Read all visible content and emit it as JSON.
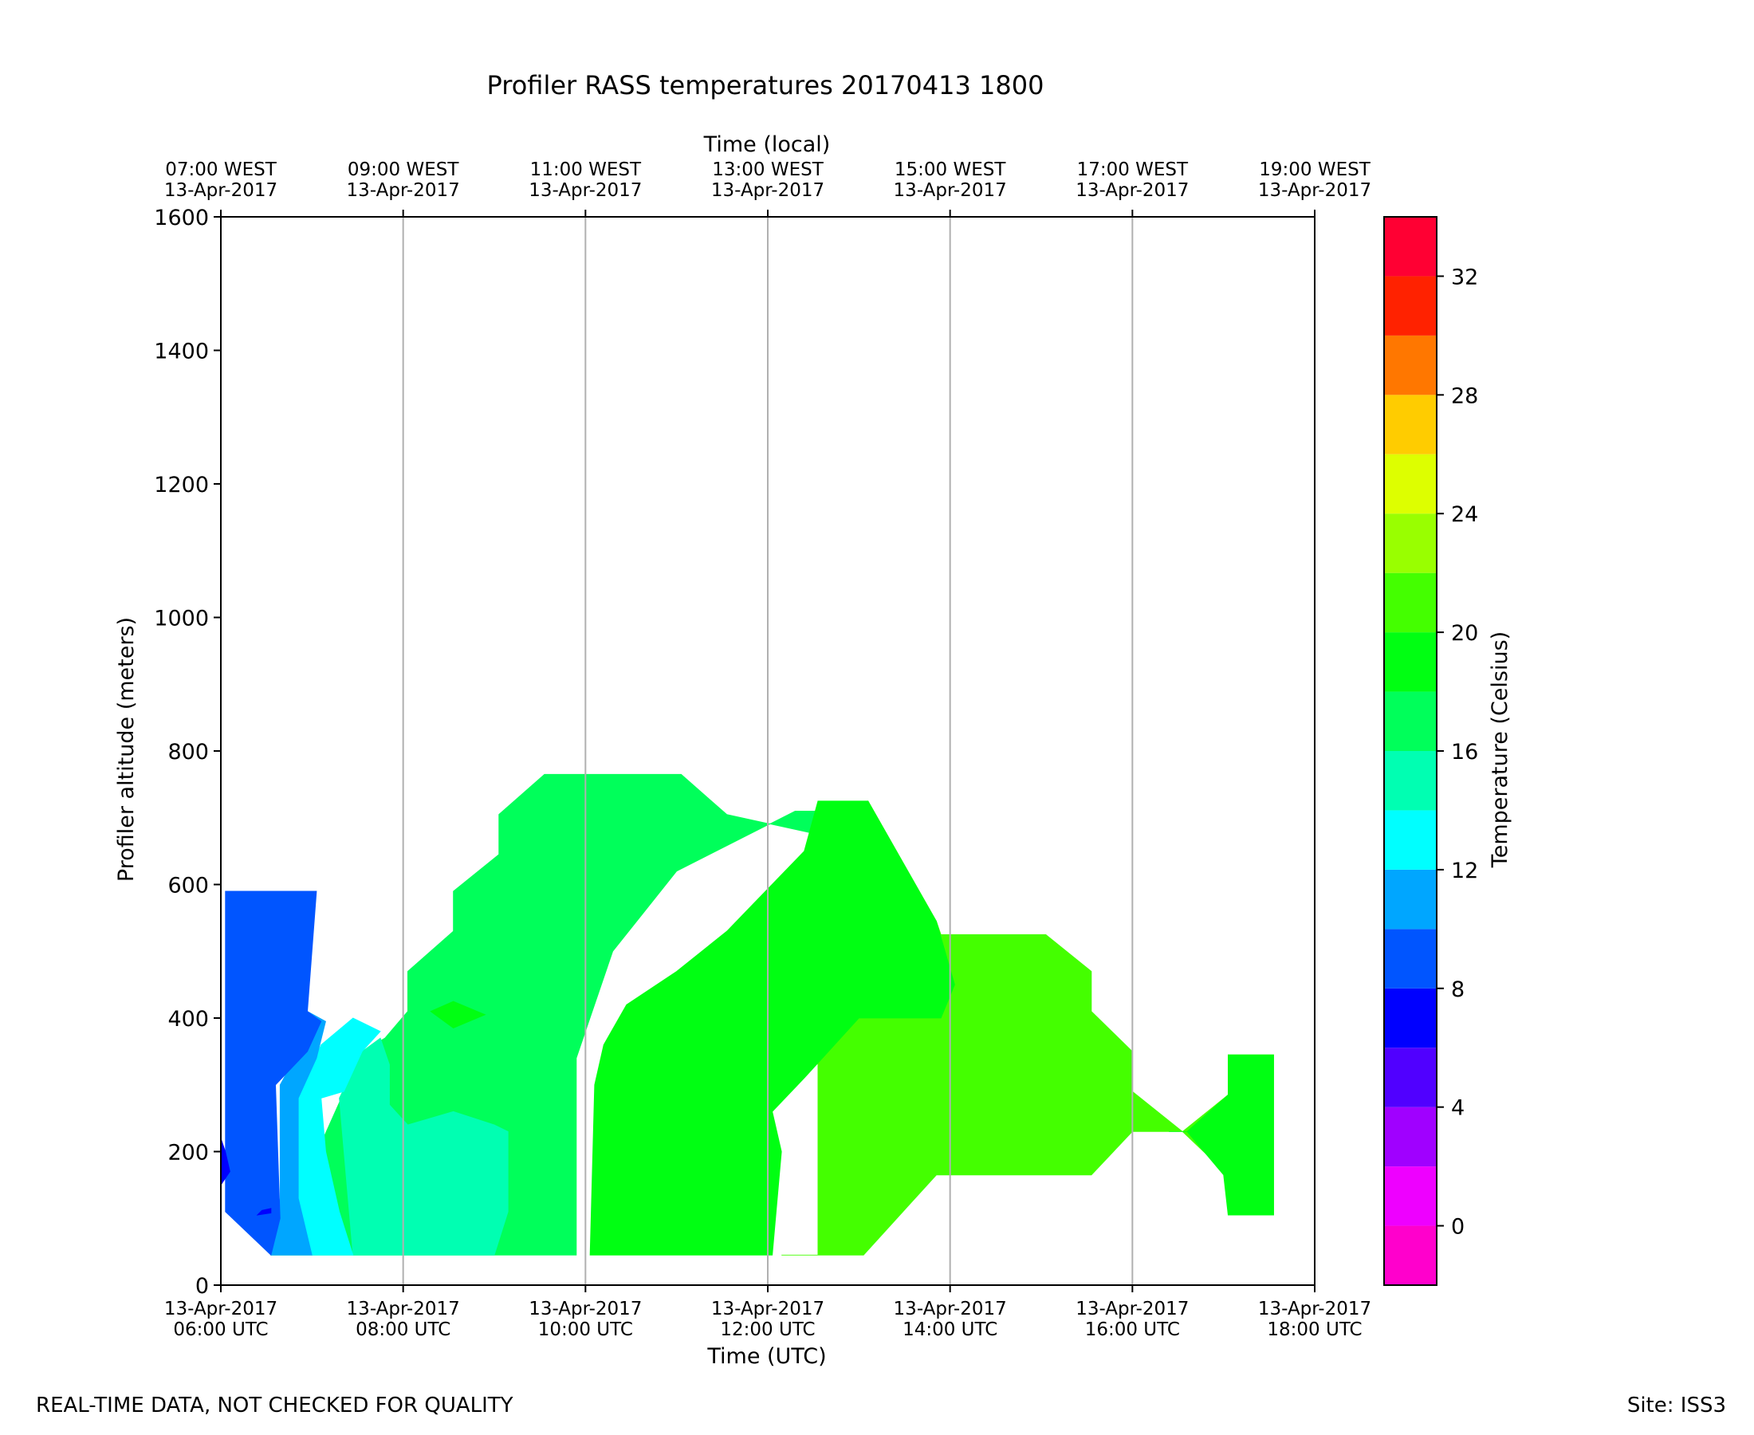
{
  "chart_data": {
    "type": "heatmap",
    "subtype": "filled-contour",
    "title": "Profiler RASS temperatures 20170413 1800",
    "xlabel": "Time (UTC)",
    "xlabel_top": "Time (local)",
    "ylabel": "Profiler altitude (meters)",
    "colorbar_label": "Temperature (Celsius)",
    "x_ticks": [
      {
        "hour": 6,
        "date": "13-Apr-2017",
        "utc": "06:00 UTC",
        "local": "07:00 WEST"
      },
      {
        "hour": 8,
        "date": "13-Apr-2017",
        "utc": "08:00 UTC",
        "local": "09:00 WEST"
      },
      {
        "hour": 10,
        "date": "13-Apr-2017",
        "utc": "10:00 UTC",
        "local": "11:00 WEST"
      },
      {
        "hour": 12,
        "date": "13-Apr-2017",
        "utc": "12:00 UTC",
        "local": "13:00 WEST"
      },
      {
        "hour": 14,
        "date": "13-Apr-2017",
        "utc": "14:00 UTC",
        "local": "15:00 WEST"
      },
      {
        "hour": 16,
        "date": "13-Apr-2017",
        "utc": "16:00 UTC",
        "local": "17:00 WEST"
      },
      {
        "hour": 18,
        "date": "13-Apr-2017",
        "utc": "18:00 UTC",
        "local": "19:00 WEST"
      }
    ],
    "xlim": [
      6,
      18
    ],
    "ylim": [
      0,
      1600
    ],
    "y_ticks": [
      0,
      200,
      400,
      600,
      800,
      1000,
      1200,
      1400,
      1600
    ],
    "colorbar": {
      "range": [
        -2,
        34
      ],
      "ticks": [
        0,
        4,
        8,
        12,
        16,
        20,
        24,
        28,
        32
      ],
      "levels": [
        {
          "from": -2,
          "to": 0,
          "color": "#ff00cc"
        },
        {
          "from": 0,
          "to": 2,
          "color": "#ee00ff"
        },
        {
          "from": 2,
          "to": 4,
          "color": "#a000ff"
        },
        {
          "from": 4,
          "to": 6,
          "color": "#5000ff"
        },
        {
          "from": 6,
          "to": 8,
          "color": "#0000ff"
        },
        {
          "from": 8,
          "to": 10,
          "color": "#0055ff"
        },
        {
          "from": 10,
          "to": 12,
          "color": "#00a6ff"
        },
        {
          "from": 12,
          "to": 14,
          "color": "#00ffff"
        },
        {
          "from": 14,
          "to": 16,
          "color": "#00ffb2"
        },
        {
          "from": 16,
          "to": 18,
          "color": "#00ff5a"
        },
        {
          "from": 18,
          "to": 20,
          "color": "#00ff12"
        },
        {
          "from": 20,
          "to": 22,
          "color": "#44ff00"
        },
        {
          "from": 22,
          "to": 24,
          "color": "#99ff00"
        },
        {
          "from": 24,
          "to": 26,
          "color": "#ddff00"
        },
        {
          "from": 26,
          "to": 28,
          "color": "#ffcc00"
        },
        {
          "from": 28,
          "to": 30,
          "color": "#ff7700"
        },
        {
          "from": 30,
          "to": 32,
          "color": "#ff2200"
        },
        {
          "from": 32,
          "to": 34,
          "color": "#ff0033"
        }
      ]
    },
    "regions": [
      {
        "level": "16-18",
        "color": "#00ff5a",
        "points": [
          [
            6.55,
            45
          ],
          [
            9.9,
            45
          ],
          [
            9.9,
            340
          ],
          [
            10.3,
            500
          ],
          [
            11,
            620
          ],
          [
            12.3,
            710
          ],
          [
            12.55,
            710
          ],
          [
            12.55,
            675
          ],
          [
            11.55,
            705
          ],
          [
            11.05,
            765
          ],
          [
            9.55,
            765
          ],
          [
            9.05,
            705
          ],
          [
            9.05,
            645
          ],
          [
            8.55,
            590
          ],
          [
            8.55,
            530
          ],
          [
            8.05,
            470
          ],
          [
            8.05,
            410
          ],
          [
            7.8,
            370
          ],
          [
            7.55,
            350
          ]
        ]
      },
      {
        "level": "20-22",
        "color": "#44ff00",
        "points": [
          [
            12.15,
            45
          ],
          [
            13.05,
            45
          ],
          [
            13.85,
            165
          ],
          [
            15.55,
            165
          ],
          [
            16.0,
            230
          ],
          [
            16.55,
            230
          ],
          [
            17.05,
            165
          ],
          [
            17.05,
            105
          ],
          [
            17.55,
            105
          ],
          [
            17.55,
            345
          ],
          [
            17.05,
            345
          ],
          [
            17.05,
            285
          ],
          [
            16.55,
            230
          ],
          [
            16.0,
            290
          ],
          [
            16.0,
            350
          ],
          [
            15.55,
            410
          ],
          [
            15.55,
            470
          ],
          [
            15.05,
            525
          ],
          [
            13.9,
            525
          ],
          [
            13.85,
            545
          ],
          [
            13.1,
            725
          ],
          [
            12.55,
            715
          ],
          [
            12.55,
            45
          ]
        ]
      },
      {
        "level": "18-20",
        "color": "#00ff12",
        "points": [
          [
            10.05,
            45
          ],
          [
            12.05,
            45
          ],
          [
            12.15,
            200
          ],
          [
            12.05,
            260
          ],
          [
            12.4,
            310
          ],
          [
            13.0,
            400
          ],
          [
            13.9,
            400
          ],
          [
            14.05,
            450
          ],
          [
            13.85,
            545
          ],
          [
            13.1,
            725
          ],
          [
            12.55,
            725
          ],
          [
            12.4,
            650
          ],
          [
            11.55,
            530
          ],
          [
            11.0,
            470
          ],
          [
            10.45,
            420
          ],
          [
            10.2,
            360
          ],
          [
            10.1,
            300
          ]
        ]
      },
      {
        "level": "18-20",
        "color": "#00ff12",
        "points": [
          [
            16.4,
            230
          ],
          [
            16.6,
            230
          ],
          [
            17.0,
            165
          ],
          [
            17.05,
            105
          ],
          [
            17.55,
            105
          ],
          [
            17.55,
            345
          ],
          [
            17.05,
            345
          ],
          [
            17.05,
            285
          ],
          [
            16.6,
            230
          ]
        ]
      },
      {
        "level": "18-20",
        "color": "#00ff12",
        "points": [
          [
            8.3,
            410
          ],
          [
            8.55,
            425
          ],
          [
            8.9,
            405
          ],
          [
            8.55,
            385
          ]
        ]
      },
      {
        "level": "14-16",
        "color": "#00ffb2",
        "points": [
          [
            7.45,
            45
          ],
          [
            9.0,
            45
          ],
          [
            9.15,
            110
          ],
          [
            9.15,
            230
          ],
          [
            9.0,
            240
          ],
          [
            8.55,
            260
          ],
          [
            8.05,
            240
          ],
          [
            7.85,
            270
          ],
          [
            7.85,
            330
          ],
          [
            7.75,
            370
          ],
          [
            7.55,
            350
          ],
          [
            7.3,
            280
          ]
        ]
      },
      {
        "level": "12-14",
        "color": "#00ffff",
        "points": [
          [
            7.0,
            45
          ],
          [
            7.45,
            45
          ],
          [
            7.3,
            110
          ],
          [
            7.15,
            200
          ],
          [
            7.1,
            280
          ],
          [
            7.35,
            290
          ],
          [
            7.55,
            350
          ],
          [
            7.75,
            380
          ],
          [
            7.45,
            400
          ],
          [
            7.1,
            360
          ],
          [
            6.85,
            280
          ],
          [
            6.85,
            120
          ]
        ]
      },
      {
        "level": "10-12",
        "color": "#00a6ff",
        "points": [
          [
            6.55,
            45
          ],
          [
            7.0,
            45
          ],
          [
            6.85,
            130
          ],
          [
            6.85,
            280
          ],
          [
            7.05,
            340
          ],
          [
            7.15,
            395
          ],
          [
            6.95,
            410
          ],
          [
            6.85,
            350
          ],
          [
            6.65,
            300
          ],
          [
            6.65,
            130
          ]
        ]
      },
      {
        "level": "8-10",
        "color": "#0055ff",
        "points": [
          [
            6.05,
            110
          ],
          [
            6.55,
            45
          ],
          [
            6.65,
            100
          ],
          [
            6.6,
            300
          ],
          [
            6.95,
            350
          ],
          [
            7.1,
            395
          ],
          [
            6.95,
            410
          ],
          [
            7.05,
            590
          ],
          [
            6.05,
            590
          ]
        ]
      },
      {
        "level": "6-8",
        "color": "#0000ff",
        "points": [
          [
            6.0,
            150
          ],
          [
            6.1,
            170
          ],
          [
            6.05,
            200
          ],
          [
            6.0,
            220
          ]
        ]
      },
      {
        "level": "6-8",
        "color": "#0000ff",
        "points": [
          [
            6.4,
            105
          ],
          [
            6.55,
            108
          ],
          [
            6.55,
            115
          ],
          [
            6.45,
            112
          ]
        ]
      }
    ]
  },
  "footer": {
    "left_note": "REAL-TIME DATA, NOT CHECKED FOR QUALITY",
    "site": "Site: ISS3"
  }
}
